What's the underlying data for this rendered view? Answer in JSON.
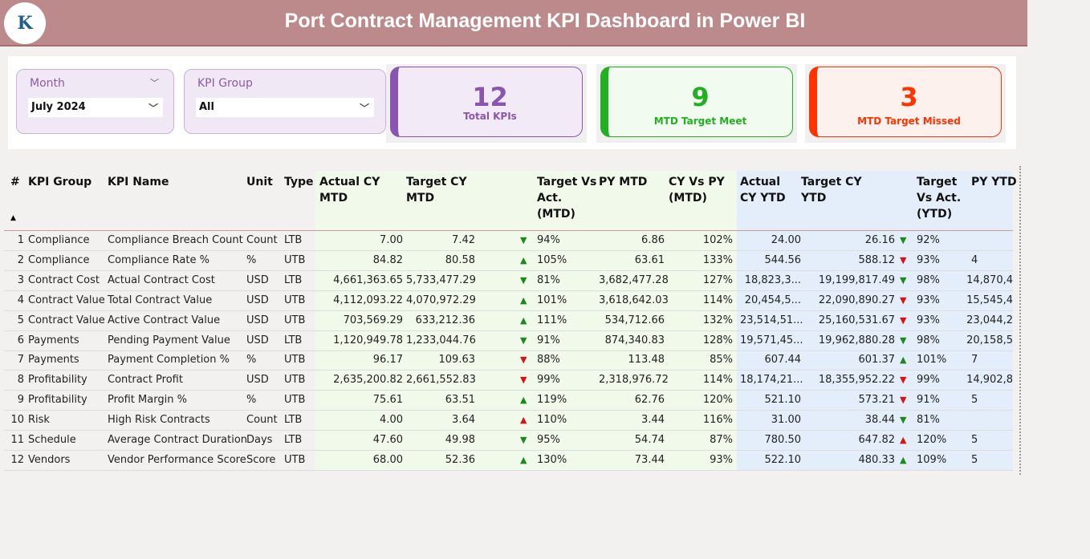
{
  "header": {
    "title": "Port Contract Management KPI Dashboard in Power BI",
    "logo_text": "K"
  },
  "filters": {
    "month": {
      "label": "Month",
      "value": "July 2024"
    },
    "kpi_group": {
      "label": "KPI Group",
      "value": "All"
    }
  },
  "cards": [
    {
      "value": "12",
      "label": "Total KPIs",
      "color": "#8a55b0"
    },
    {
      "value": "9",
      "label": "MTD Target Meet",
      "color": "#22b022"
    },
    {
      "value": "3",
      "label": "MTD Target Missed",
      "color": "#ff3300"
    }
  ],
  "table": {
    "columns": [
      "#",
      "KPI Group",
      "KPI Name",
      "Unit",
      "Type",
      "Actual CY MTD",
      "Target CY MTD",
      "Target Vs Act. (MTD)",
      "PY MTD",
      "CY Vs PY (MTD)",
      "Actual CY YTD",
      "Target CY YTD",
      "Target Vs Act. (YTD)",
      "PY YTD"
    ],
    "sort_indicator": "▲",
    "rows": [
      {
        "n": "1",
        "group": "Compliance",
        "name": "Compliance Breach Count",
        "unit": "Count",
        "type": "LTB",
        "act_mtd": "7.00",
        "tgt_mtd": "7.42",
        "mtd_arrow": "down",
        "mtd_color": "green",
        "tva_mtd": "94%",
        "py_mtd": "6.86",
        "cyvpy": "102%",
        "act_ytd": "24.00",
        "tgt_ytd": "26.16",
        "ytd_arrow": "down",
        "ytd_color": "green",
        "tva_ytd": "92%",
        "py_ytd": ""
      },
      {
        "n": "2",
        "group": "Compliance",
        "name": "Compliance Rate %",
        "unit": "%",
        "type": "UTB",
        "act_mtd": "84.82",
        "tgt_mtd": "80.58",
        "mtd_arrow": "up",
        "mtd_color": "green",
        "tva_mtd": "105%",
        "py_mtd": "63.61",
        "cyvpy": "133%",
        "act_ytd": "544.56",
        "tgt_ytd": "588.12",
        "ytd_arrow": "down",
        "ytd_color": "red",
        "tva_ytd": "93%",
        "py_ytd": "4"
      },
      {
        "n": "3",
        "group": "Contract Cost",
        "name": "Actual Contract Cost",
        "unit": "USD",
        "type": "LTB",
        "act_mtd": "4,661,363.65",
        "tgt_mtd": "5,733,477.29",
        "mtd_arrow": "down",
        "mtd_color": "green",
        "tva_mtd": "81%",
        "py_mtd": "3,682,477.28",
        "cyvpy": "127%",
        "act_ytd": "18,823,3...",
        "tgt_ytd": "19,199,817.49",
        "ytd_arrow": "down",
        "ytd_color": "green",
        "tva_ytd": "98%",
        "py_ytd": "14,870,4"
      },
      {
        "n": "4",
        "group": "Contract Value",
        "name": "Total Contract Value",
        "unit": "USD",
        "type": "UTB",
        "act_mtd": "4,112,093.22",
        "tgt_mtd": "4,070,972.29",
        "mtd_arrow": "up",
        "mtd_color": "green",
        "tva_mtd": "101%",
        "py_mtd": "3,618,642.03",
        "cyvpy": "114%",
        "act_ytd": "20,454,5...",
        "tgt_ytd": "22,090,890.27",
        "ytd_arrow": "down",
        "ytd_color": "red",
        "tva_ytd": "93%",
        "py_ytd": "15,545,4"
      },
      {
        "n": "5",
        "group": "Contract Value",
        "name": "Active Contract Value",
        "unit": "USD",
        "type": "UTB",
        "act_mtd": "703,569.29",
        "tgt_mtd": "633,212.36",
        "mtd_arrow": "up",
        "mtd_color": "green",
        "tva_mtd": "111%",
        "py_mtd": "534,712.66",
        "cyvpy": "132%",
        "act_ytd": "23,514,51...",
        "tgt_ytd": "25,160,531.67",
        "ytd_arrow": "down",
        "ytd_color": "red",
        "tva_ytd": "93%",
        "py_ytd": "23,044,2"
      },
      {
        "n": "6",
        "group": "Payments",
        "name": "Pending Payment Value",
        "unit": "USD",
        "type": "LTB",
        "act_mtd": "1,120,949.78",
        "tgt_mtd": "1,233,044.76",
        "mtd_arrow": "down",
        "mtd_color": "green",
        "tva_mtd": "91%",
        "py_mtd": "874,340.83",
        "cyvpy": "128%",
        "act_ytd": "19,571,45...",
        "tgt_ytd": "19,962,880.28",
        "ytd_arrow": "down",
        "ytd_color": "green",
        "tva_ytd": "98%",
        "py_ytd": "20,158,5"
      },
      {
        "n": "7",
        "group": "Payments",
        "name": "Payment Completion %",
        "unit": "%",
        "type": "UTB",
        "act_mtd": "96.17",
        "tgt_mtd": "109.63",
        "mtd_arrow": "down",
        "mtd_color": "red",
        "tva_mtd": "88%",
        "py_mtd": "113.48",
        "cyvpy": "85%",
        "act_ytd": "607.44",
        "tgt_ytd": "601.37",
        "ytd_arrow": "up",
        "ytd_color": "green",
        "tva_ytd": "101%",
        "py_ytd": "7"
      },
      {
        "n": "8",
        "group": "Profitability",
        "name": "Contract Profit",
        "unit": "USD",
        "type": "UTB",
        "act_mtd": "2,635,200.82",
        "tgt_mtd": "2,661,552.83",
        "mtd_arrow": "down",
        "mtd_color": "red",
        "tva_mtd": "99%",
        "py_mtd": "2,318,976.72",
        "cyvpy": "114%",
        "act_ytd": "18,174,21...",
        "tgt_ytd": "18,355,952.22",
        "ytd_arrow": "down",
        "ytd_color": "red",
        "tva_ytd": "99%",
        "py_ytd": "14,902,8"
      },
      {
        "n": "9",
        "group": "Profitability",
        "name": "Profit Margin %",
        "unit": "%",
        "type": "UTB",
        "act_mtd": "75.61",
        "tgt_mtd": "63.51",
        "mtd_arrow": "up",
        "mtd_color": "green",
        "tva_mtd": "119%",
        "py_mtd": "62.76",
        "cyvpy": "120%",
        "act_ytd": "521.10",
        "tgt_ytd": "573.21",
        "ytd_arrow": "down",
        "ytd_color": "red",
        "tva_ytd": "91%",
        "py_ytd": "5"
      },
      {
        "n": "10",
        "group": "Risk",
        "name": "High Risk Contracts",
        "unit": "Count",
        "type": "LTB",
        "act_mtd": "4.00",
        "tgt_mtd": "3.64",
        "mtd_arrow": "up",
        "mtd_color": "red",
        "tva_mtd": "110%",
        "py_mtd": "3.44",
        "cyvpy": "116%",
        "act_ytd": "31.00",
        "tgt_ytd": "38.44",
        "ytd_arrow": "down",
        "ytd_color": "green",
        "tva_ytd": "81%",
        "py_ytd": ""
      },
      {
        "n": "11",
        "group": "Schedule",
        "name": "Average Contract Duration",
        "unit": "Days",
        "type": "LTB",
        "act_mtd": "47.60",
        "tgt_mtd": "49.98",
        "mtd_arrow": "down",
        "mtd_color": "green",
        "tva_mtd": "95%",
        "py_mtd": "54.74",
        "cyvpy": "87%",
        "act_ytd": "780.50",
        "tgt_ytd": "647.82",
        "ytd_arrow": "up",
        "ytd_color": "red",
        "tva_ytd": "120%",
        "py_ytd": "5"
      },
      {
        "n": "12",
        "group": "Vendors",
        "name": "Vendor Performance Score",
        "unit": "Score",
        "type": "UTB",
        "act_mtd": "68.00",
        "tgt_mtd": "52.36",
        "mtd_arrow": "up",
        "mtd_color": "green",
        "tva_mtd": "130%",
        "py_mtd": "73.44",
        "cyvpy": "93%",
        "act_ytd": "522.10",
        "tgt_ytd": "480.33",
        "ytd_arrow": "up",
        "ytd_color": "green",
        "tva_ytd": "109%",
        "py_ytd": "5"
      }
    ]
  },
  "colors": {
    "green": "#1a8a1a",
    "red": "#e01010",
    "header_bg": "#bc8a8a"
  }
}
